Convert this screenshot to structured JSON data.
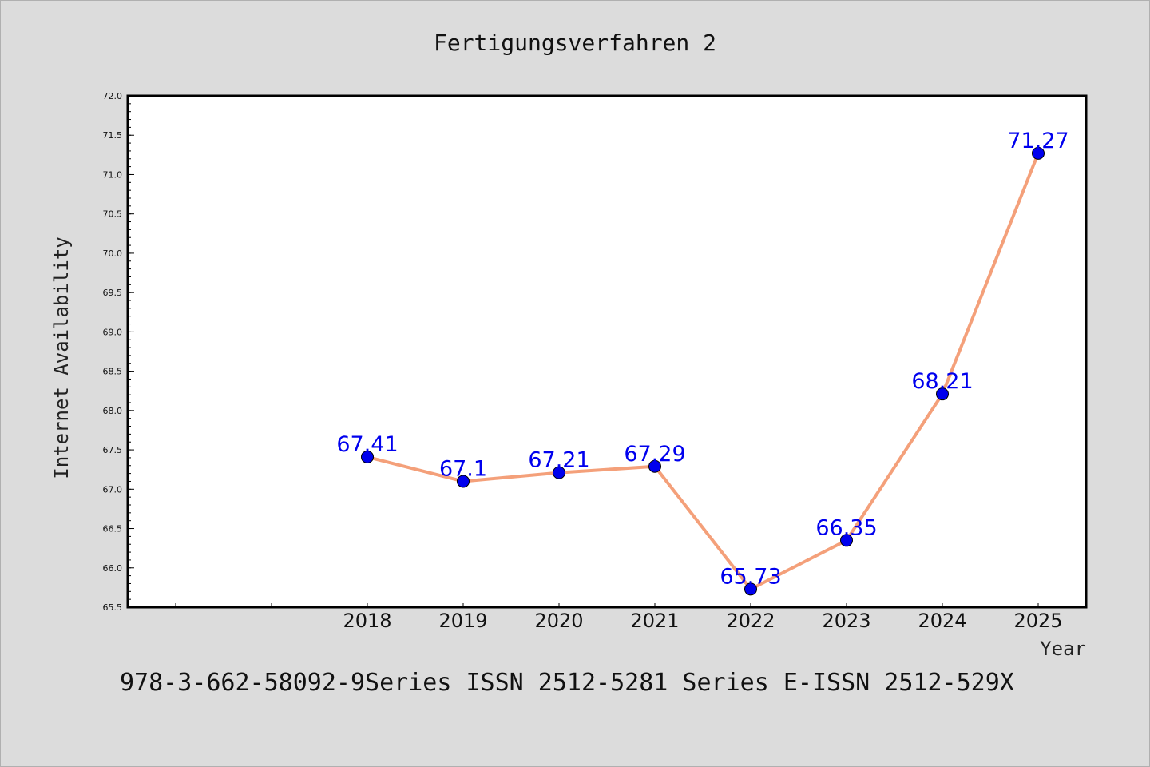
{
  "chart_data": {
    "type": "line",
    "title": "Fertigungsverfahren 2",
    "xlabel": "Year",
    "ylabel": "Internet Availability",
    "x": [
      "2018",
      "2019",
      "2020",
      "2021",
      "2022",
      "2023",
      "2024",
      "2025"
    ],
    "series": [
      {
        "values": [
          67.41,
          67.1,
          67.21,
          67.29,
          65.73,
          66.35,
          68.21,
          71.27
        ],
        "data_labels": [
          "67.41",
          "67.1",
          "67.21",
          "67.29",
          "65.73",
          "66.35",
          "68.21",
          "71.27"
        ],
        "line_color": "#f4a07a",
        "marker_color": "#0000ee"
      }
    ],
    "ylim": [
      65.5,
      72.0
    ],
    "yticks": [
      "65.5",
      "66.0",
      "66.5",
      "67.0",
      "67.5",
      "68.0",
      "68.5",
      "69.0",
      "69.5",
      "70.0",
      "70.5",
      "71.0",
      "71.5",
      "72.0"
    ],
    "grid": false,
    "legend": "none",
    "footer": "978-3-662-58092-9Series ISSN 2512-5281 Series E-ISSN 2512-529X"
  }
}
